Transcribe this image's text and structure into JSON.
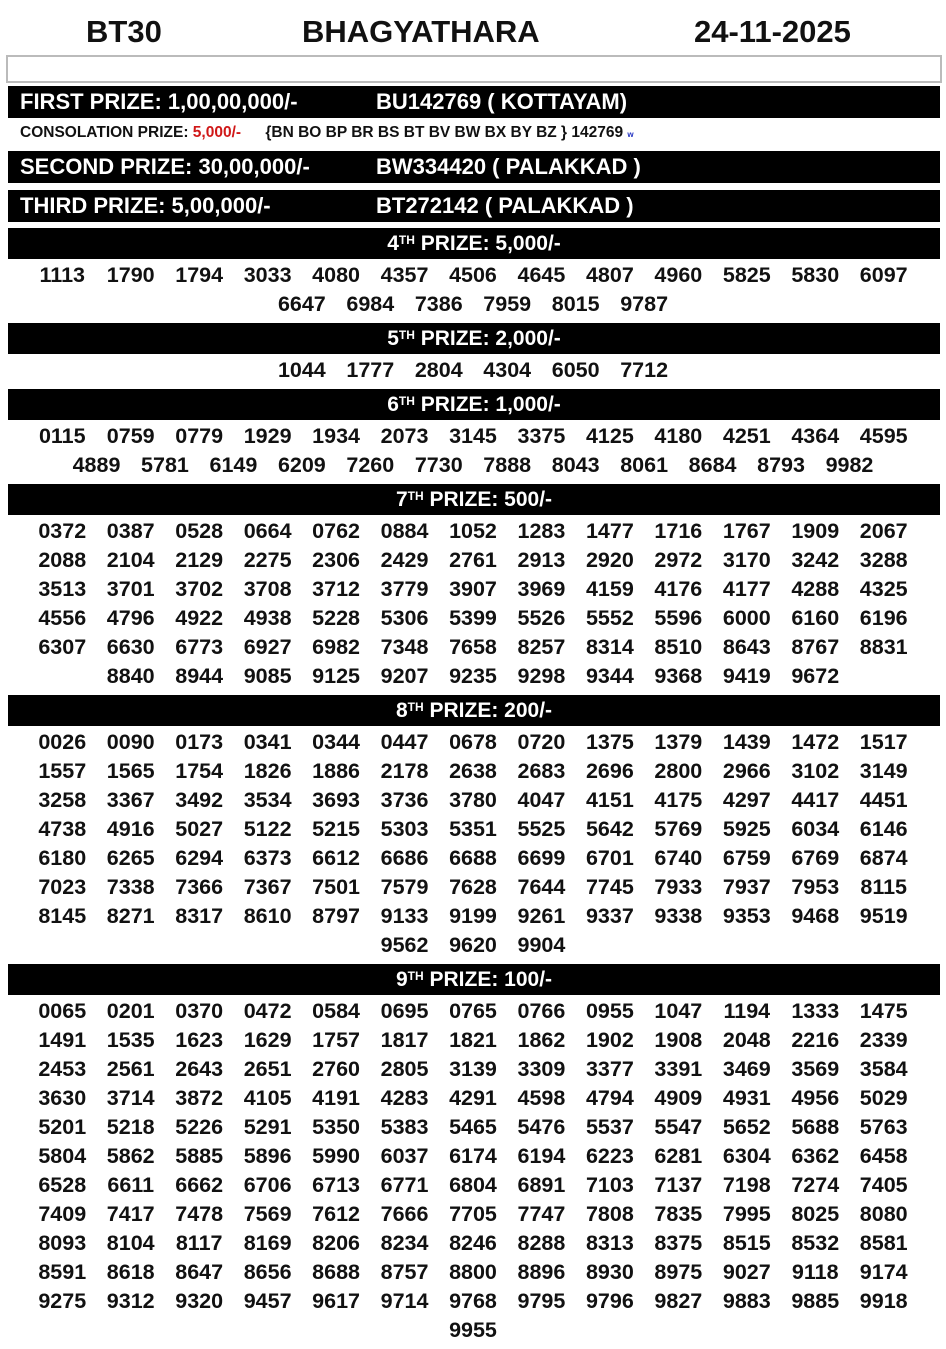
{
  "header": {
    "code": "BT30",
    "title": "BHAGYATHARA",
    "date": "24-11-2025"
  },
  "first_prize": {
    "label": "FIRST PRIZE: 1,00,00,000/-",
    "ticket": "BU142769 ( KOTTAYAM)"
  },
  "consolation": {
    "label": "CONSOLATION PRIZE: ",
    "amount": "5,000/-",
    "series": "{BN BO BP BR BS BT BV BW BX BY BZ } 142769",
    "tail": "w"
  },
  "second_prize": {
    "label": "SECOND PRIZE: 30,00,000/-",
    "ticket": "BW334420 ( PALAKKAD )"
  },
  "third_prize": {
    "label": "THIRD PRIZE: 5,00,000/-",
    "ticket": "BT272142 ( PALAKKAD )"
  },
  "colors": {
    "bar": "#000000",
    "consolation_amount": "#d01818"
  },
  "prizes": [
    {
      "ordinal": "4",
      "suffix": "TH",
      "title": " PRIZE: 5,000/-",
      "numbers": [
        "1113",
        "1790",
        "1794",
        "3033",
        "4080",
        "4357",
        "4506",
        "4645",
        "4807",
        "4960",
        "5825",
        "5830",
        "6097",
        "6647",
        "6984",
        "7386",
        "7959",
        "8015",
        "9787"
      ]
    },
    {
      "ordinal": "5",
      "suffix": "TH",
      "title": " PRIZE: 2,000/-",
      "numbers": [
        "1044",
        "1777",
        "2804",
        "4304",
        "6050",
        "7712"
      ]
    },
    {
      "ordinal": "6",
      "suffix": "TH",
      "title": " PRIZE: 1,000/-",
      "numbers": [
        "0115",
        "0759",
        "0779",
        "1929",
        "1934",
        "2073",
        "3145",
        "3375",
        "4125",
        "4180",
        "4251",
        "4364",
        "4595",
        "4889",
        "5781",
        "6149",
        "6209",
        "7260",
        "7730",
        "7888",
        "8043",
        "8061",
        "8684",
        "8793",
        "9982"
      ]
    },
    {
      "ordinal": "7",
      "suffix": "TH",
      "title": " PRIZE: 500/-",
      "numbers": [
        "0372",
        "0387",
        "0528",
        "0664",
        "0762",
        "0884",
        "1052",
        "1283",
        "1477",
        "1716",
        "1767",
        "1909",
        "2067",
        "2088",
        "2104",
        "2129",
        "2275",
        "2306",
        "2429",
        "2761",
        "2913",
        "2920",
        "2972",
        "3170",
        "3242",
        "3288",
        "3513",
        "3701",
        "3702",
        "3708",
        "3712",
        "3779",
        "3907",
        "3969",
        "4159",
        "4176",
        "4177",
        "4288",
        "4325",
        "4556",
        "4796",
        "4922",
        "4938",
        "5228",
        "5306",
        "5399",
        "5526",
        "5552",
        "5596",
        "6000",
        "6160",
        "6196",
        "6307",
        "6630",
        "6773",
        "6927",
        "6982",
        "7348",
        "7658",
        "8257",
        "8314",
        "8510",
        "8643",
        "8767",
        "8831",
        "8840",
        "8944",
        "9085",
        "9125",
        "9207",
        "9235",
        "9298",
        "9344",
        "9368",
        "9419",
        "9672"
      ]
    },
    {
      "ordinal": "8",
      "suffix": "TH",
      "title": " PRIZE: 200/-",
      "numbers": [
        "0026",
        "0090",
        "0173",
        "0341",
        "0344",
        "0447",
        "0678",
        "0720",
        "1375",
        "1379",
        "1439",
        "1472",
        "1517",
        "1557",
        "1565",
        "1754",
        "1826",
        "1886",
        "2178",
        "2638",
        "2683",
        "2696",
        "2800",
        "2966",
        "3102",
        "3149",
        "3258",
        "3367",
        "3492",
        "3534",
        "3693",
        "3736",
        "3780",
        "4047",
        "4151",
        "4175",
        "4297",
        "4417",
        "4451",
        "4738",
        "4916",
        "5027",
        "5122",
        "5215",
        "5303",
        "5351",
        "5525",
        "5642",
        "5769",
        "5925",
        "6034",
        "6146",
        "6180",
        "6265",
        "6294",
        "6373",
        "6612",
        "6686",
        "6688",
        "6699",
        "6701",
        "6740",
        "6759",
        "6769",
        "6874",
        "7023",
        "7338",
        "7366",
        "7367",
        "7501",
        "7579",
        "7628",
        "7644",
        "7745",
        "7933",
        "7937",
        "7953",
        "8115",
        "8145",
        "8271",
        "8317",
        "8610",
        "8797",
        "9133",
        "9199",
        "9261",
        "9337",
        "9338",
        "9353",
        "9468",
        "9519",
        "9562",
        "9620",
        "9904"
      ]
    },
    {
      "ordinal": "9",
      "suffix": "TH",
      "title": " PRIZE: 100/-",
      "numbers": [
        "0065",
        "0201",
        "0370",
        "0472",
        "0584",
        "0695",
        "0765",
        "0766",
        "0955",
        "1047",
        "1194",
        "1333",
        "1475",
        "1491",
        "1535",
        "1623",
        "1629",
        "1757",
        "1817",
        "1821",
        "1862",
        "1902",
        "1908",
        "2048",
        "2216",
        "2339",
        "2453",
        "2561",
        "2643",
        "2651",
        "2760",
        "2805",
        "3139",
        "3309",
        "3377",
        "3391",
        "3469",
        "3569",
        "3584",
        "3630",
        "3714",
        "3872",
        "4105",
        "4191",
        "4283",
        "4291",
        "4598",
        "4794",
        "4909",
        "4931",
        "4956",
        "5029",
        "5201",
        "5218",
        "5226",
        "5291",
        "5350",
        "5383",
        "5465",
        "5476",
        "5537",
        "5547",
        "5652",
        "5688",
        "5763",
        "5804",
        "5862",
        "5885",
        "5896",
        "5990",
        "6037",
        "6174",
        "6194",
        "6223",
        "6281",
        "6304",
        "6362",
        "6458",
        "6528",
        "6611",
        "6662",
        "6706",
        "6713",
        "6771",
        "6804",
        "6891",
        "7103",
        "7137",
        "7198",
        "7274",
        "7405",
        "7409",
        "7417",
        "7478",
        "7569",
        "7612",
        "7666",
        "7705",
        "7747",
        "7808",
        "7835",
        "7995",
        "8025",
        "8080",
        "8093",
        "8104",
        "8117",
        "8169",
        "8206",
        "8234",
        "8246",
        "8288",
        "8313",
        "8375",
        "8515",
        "8532",
        "8581",
        "8591",
        "8618",
        "8647",
        "8656",
        "8688",
        "8757",
        "8800",
        "8896",
        "8930",
        "8975",
        "9027",
        "9118",
        "9174",
        "9275",
        "9312",
        "9320",
        "9457",
        "9617",
        "9714",
        "9768",
        "9795",
        "9796",
        "9827",
        "9883",
        "9885",
        "9918",
        "9955"
      ]
    }
  ]
}
